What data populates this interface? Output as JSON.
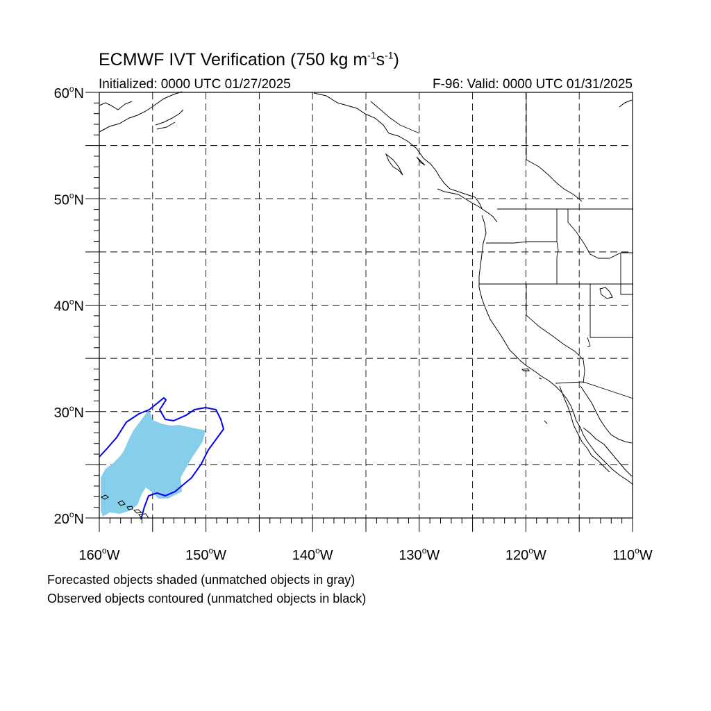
{
  "header": {
    "title_main": "ECMWF IVT Verification (750 kg m",
    "title_exp1": "-1",
    "title_mid": "s",
    "title_exp2": "-1",
    "title_end": ")",
    "initialized": "Initialized: 0000 UTC 01/27/2025",
    "valid": "F-96: Valid: 0000 UTC 01/31/2025"
  },
  "map": {
    "lon_range": [
      -160,
      -110
    ],
    "lat_range": [
      20,
      60
    ],
    "lat_labels": [
      {
        "lat": 60,
        "num": "60",
        "deg": "o",
        "hem": "N"
      },
      {
        "lat": 50,
        "num": "50",
        "deg": "o",
        "hem": "N"
      },
      {
        "lat": 40,
        "num": "40",
        "deg": "o",
        "hem": "N"
      },
      {
        "lat": 30,
        "num": "30",
        "deg": "o",
        "hem": "N"
      },
      {
        "lat": 20,
        "num": "20",
        "deg": "o",
        "hem": "N"
      }
    ],
    "lon_labels": [
      {
        "lon": -160,
        "num": "160",
        "deg": "o",
        "hem": "W"
      },
      {
        "lon": -150,
        "num": "150",
        "deg": "o",
        "hem": "W"
      },
      {
        "lon": -140,
        "num": "140",
        "deg": "o",
        "hem": "W"
      },
      {
        "lon": -130,
        "num": "130",
        "deg": "o",
        "hem": "W"
      },
      {
        "lon": -120,
        "num": "120",
        "deg": "o",
        "hem": "W"
      },
      {
        "lon": -110,
        "num": "110",
        "deg": "o",
        "hem": "W"
      }
    ],
    "grid_lons": [
      -155,
      -150,
      -145,
      -140,
      -135,
      -130,
      -125,
      -120,
      -115
    ],
    "grid_lats": [
      25,
      30,
      35,
      40,
      45,
      50,
      55
    ],
    "colors": {
      "forecast_fill": "#87ceeb",
      "observed_contour": "#0000ee",
      "coast": "#000000",
      "grid": "#000000"
    }
  },
  "legend": {
    "line1": "Forecasted objects shaded (unmatched objects in gray)",
    "line2": "Observed objects contoured (unmatched objects in black)"
  }
}
